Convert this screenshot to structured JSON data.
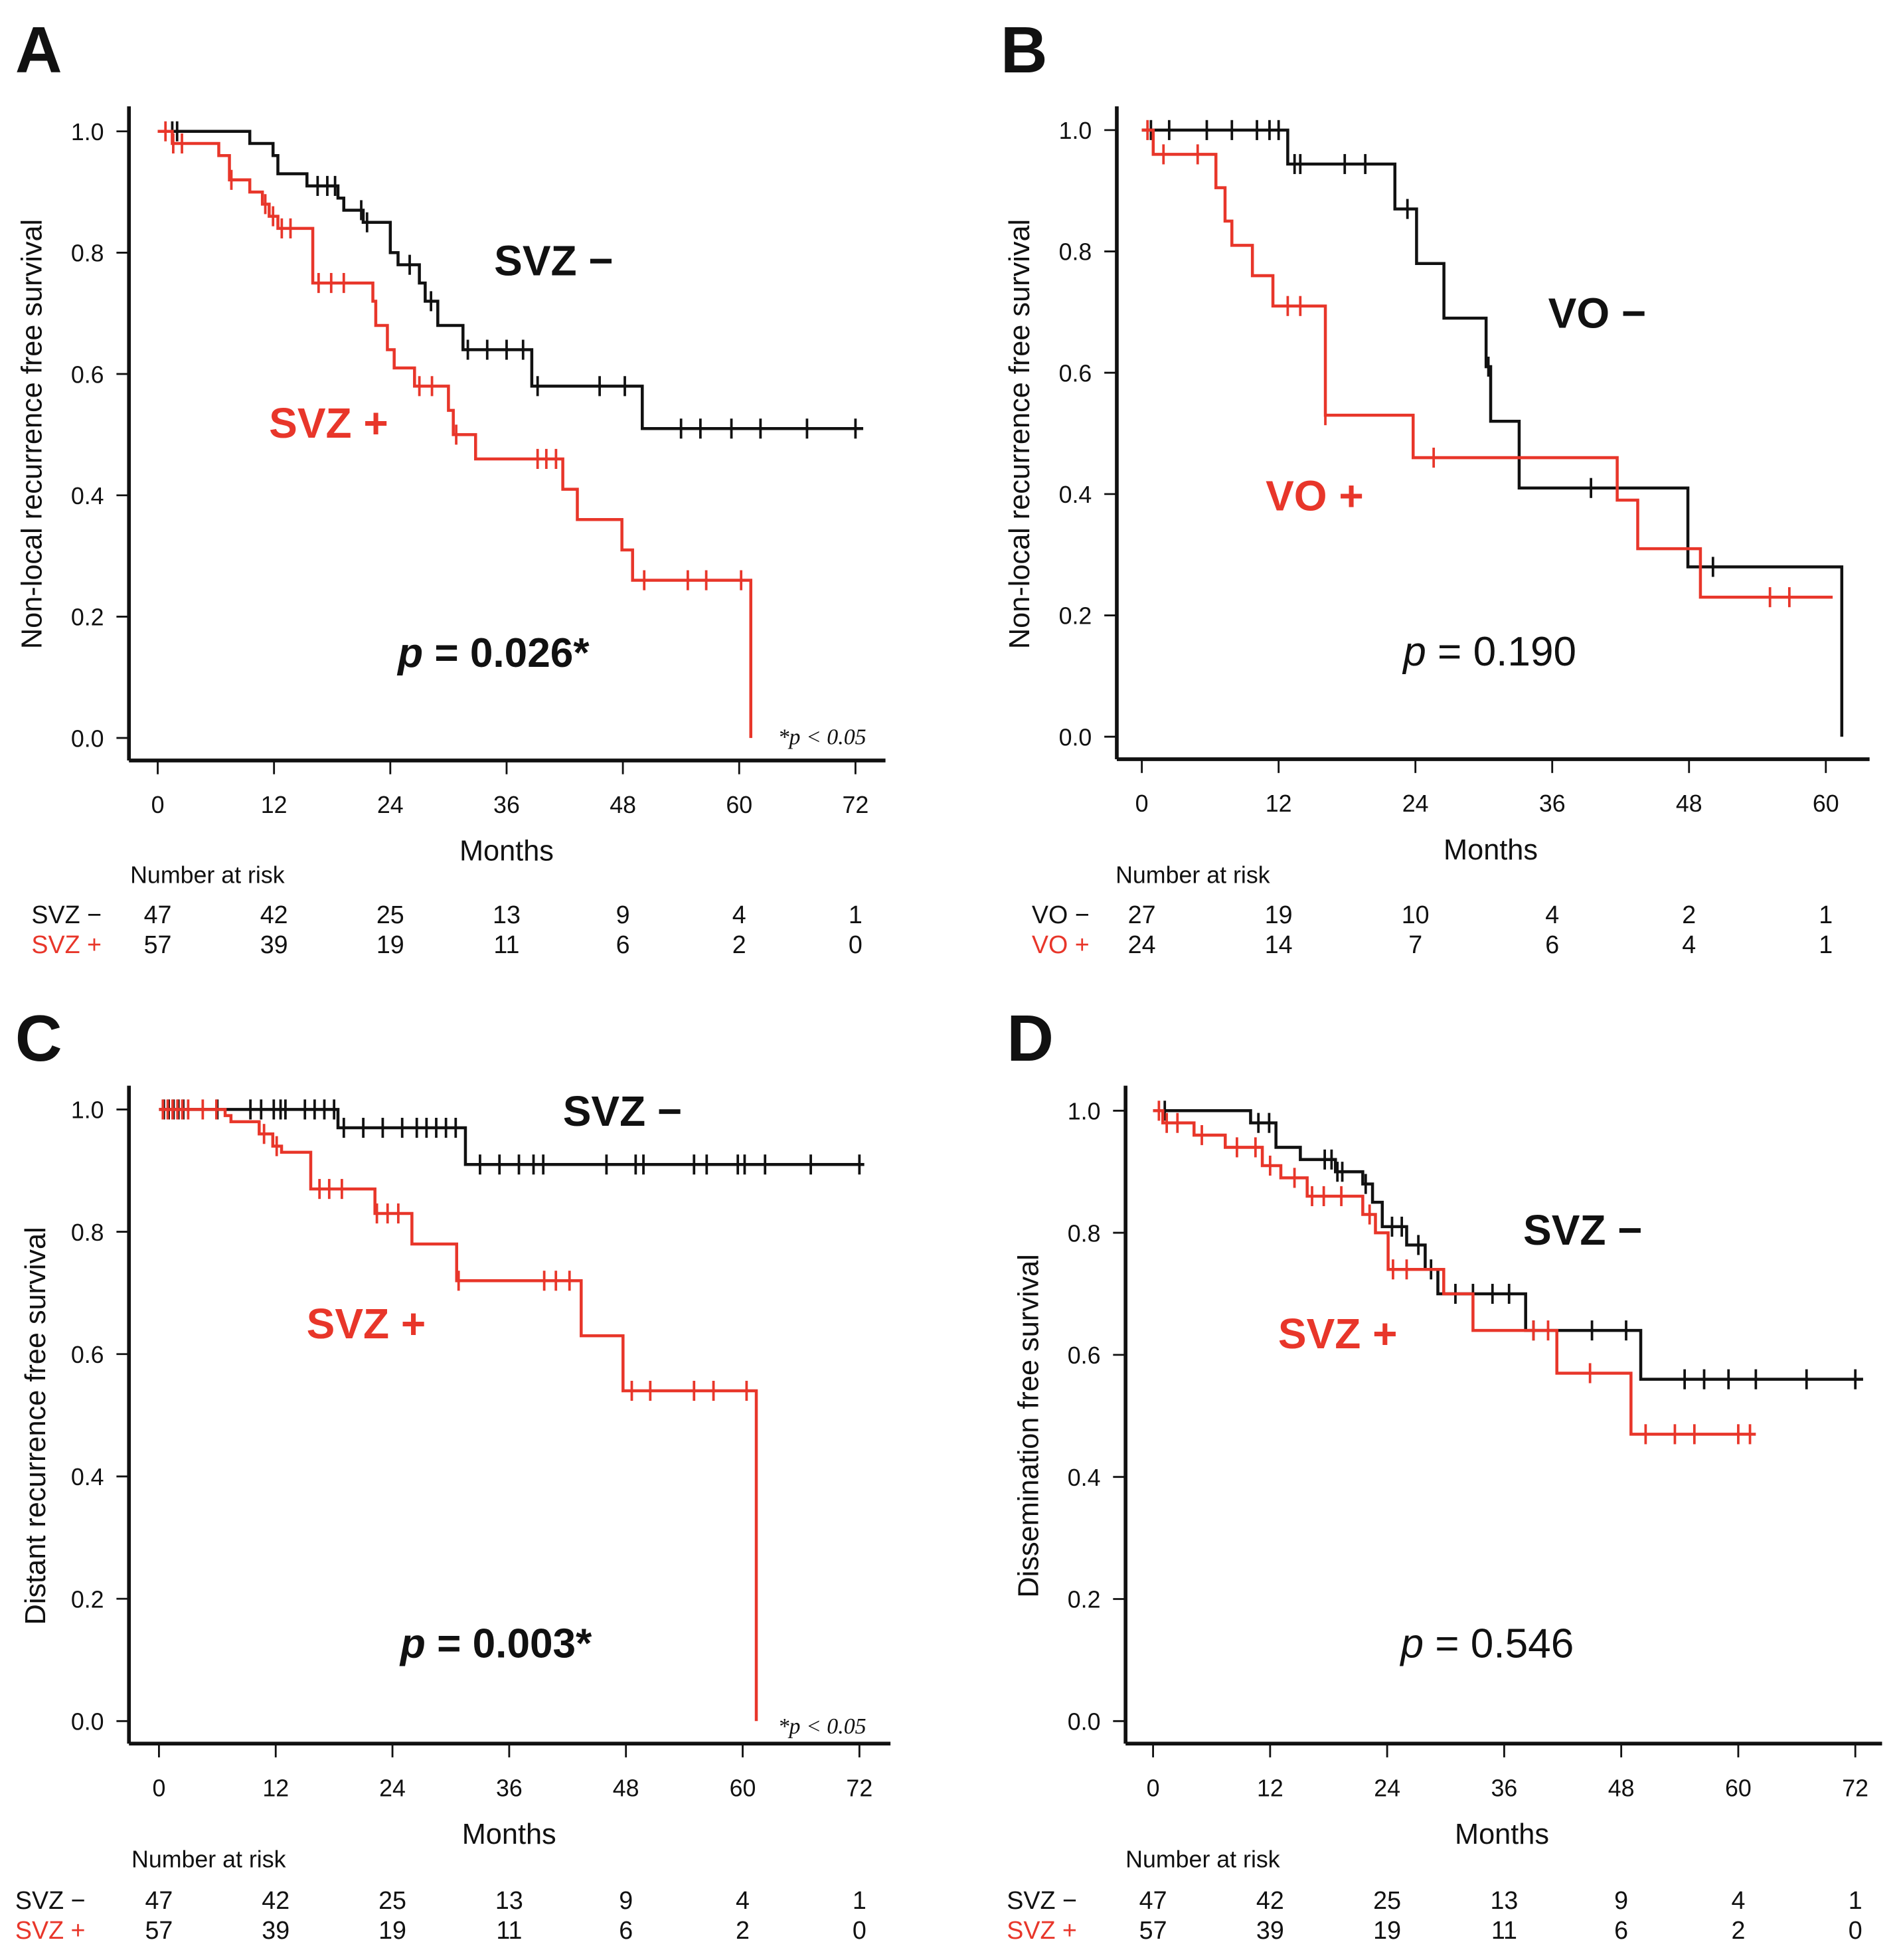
{
  "colors": {
    "black": "#111111",
    "red": "#e8362a"
  },
  "chart_data": [
    {
      "type": "line",
      "panel": "A",
      "ylabel": "Non-local recurrence free survival",
      "xlabel": "Months",
      "xticks": [
        0,
        12,
        24,
        36,
        48,
        60,
        72
      ],
      "yticks": [
        "0.0",
        "0.2",
        "0.4",
        "0.6",
        "0.8",
        "1.0"
      ],
      "xlim": [
        0,
        72
      ],
      "ylim": [
        0,
        1
      ],
      "series": [
        {
          "name": "SVZ −",
          "color": "black",
          "steps": [
            [
              0,
              1.0
            ],
            [
              9.5,
              0.98
            ],
            [
              11.9,
              0.96
            ],
            [
              12.4,
              0.93
            ],
            [
              15.4,
              0.91
            ],
            [
              18.6,
              0.89
            ],
            [
              19.2,
              0.87
            ],
            [
              21.2,
              0.85
            ],
            [
              24,
              0.8
            ],
            [
              24.8,
              0.78
            ],
            [
              27,
              0.75
            ],
            [
              27.6,
              0.72
            ],
            [
              28.9,
              0.68
            ],
            [
              31.5,
              0.64
            ],
            [
              38.6,
              0.58
            ],
            [
              50,
              0.51
            ]
          ],
          "censors": [
            1.5,
            2,
            16.5,
            17.5,
            18.3,
            21,
            21.6,
            26,
            28.2,
            32,
            34,
            36,
            37.7,
            39.2,
            45.6,
            48.2,
            54,
            56,
            59.2,
            62.2,
            67,
            72
          ],
          "end": 72.8
        },
        {
          "name": "SVZ +",
          "color": "red",
          "steps": [
            [
              0,
              1.0
            ],
            [
              1.5,
              0.98
            ],
            [
              6.3,
              0.96
            ],
            [
              7.4,
              0.92
            ],
            [
              9.5,
              0.9
            ],
            [
              10.8,
              0.88
            ],
            [
              11.5,
              0.86
            ],
            [
              12.4,
              0.84
            ],
            [
              16,
              0.75
            ],
            [
              22.2,
              0.72
            ],
            [
              22.5,
              0.68
            ],
            [
              23.7,
              0.64
            ],
            [
              24.4,
              0.61
            ],
            [
              26.5,
              0.58
            ],
            [
              30,
              0.54
            ],
            [
              30.5,
              0.5
            ],
            [
              32.8,
              0.46
            ],
            [
              41.8,
              0.41
            ],
            [
              43.3,
              0.36
            ],
            [
              47.9,
              0.31
            ],
            [
              49,
              0.26
            ],
            [
              61.2,
              0.0
            ]
          ],
          "censors": [
            0.8,
            1.6,
            2.5,
            7.6,
            11.1,
            11.9,
            12.8,
            13.7,
            16.6,
            17.9,
            19.2,
            27,
            28.3,
            30.8,
            39.2,
            40.1,
            41.1,
            50.2,
            54.7,
            56.6,
            60.2
          ],
          "end": 61.2
        }
      ],
      "annotations": {
        "group_minus": "SVZ −",
        "group_plus": "SVZ +",
        "p_label": "p",
        "p_value": " = 0.026*",
        "p_bold": true,
        "footnote": "*p < 0.05"
      },
      "risk_table": {
        "title": "Number at risk",
        "times": [
          0,
          12,
          24,
          36,
          48,
          60,
          72
        ],
        "rows": [
          {
            "label": "SVZ −",
            "color": "black",
            "values": [
              47,
              42,
              25,
              13,
              9,
              4,
              1
            ]
          },
          {
            "label": "SVZ +",
            "color": "red",
            "values": [
              57,
              39,
              19,
              11,
              6,
              2,
              0
            ]
          }
        ]
      }
    },
    {
      "type": "line",
      "panel": "B",
      "ylabel": "Non-local recurrence free survival",
      "xlabel": "Months",
      "xticks": [
        0,
        12,
        24,
        36,
        48,
        60
      ],
      "yticks": [
        "0.0",
        "0.2",
        "0.4",
        "0.6",
        "0.8",
        "1.0"
      ],
      "xlim": [
        0,
        60
      ],
      "ylim": [
        0,
        1
      ],
      "series": [
        {
          "name": "VO −",
          "color": "black",
          "steps": [
            [
              0,
              1.0
            ],
            [
              12.8,
              0.944
            ],
            [
              22.2,
              0.87
            ],
            [
              24.1,
              0.78
            ],
            [
              26.5,
              0.69
            ],
            [
              30.2,
              0.61
            ],
            [
              30.6,
              0.52
            ],
            [
              33.1,
              0.41
            ],
            [
              47.9,
              0.28
            ],
            [
              61.4,
              0.0
            ]
          ],
          "censors": [
            0.8,
            2.4,
            5.7,
            7.9,
            10.1,
            11.2,
            12,
            13.4,
            13.9,
            17.8,
            19.6,
            23.3,
            30.4,
            39.4,
            50.1
          ],
          "end": 61.4
        },
        {
          "name": "VO +",
          "color": "red",
          "steps": [
            [
              0,
              1.0
            ],
            [
              1,
              0.96
            ],
            [
              6.5,
              0.905
            ],
            [
              7.3,
              0.85
            ],
            [
              7.9,
              0.81
            ],
            [
              9.7,
              0.76
            ],
            [
              11.5,
              0.71
            ],
            [
              16.1,
              0.53
            ],
            [
              23.8,
              0.46
            ],
            [
              41.7,
              0.39
            ],
            [
              43.5,
              0.31
            ],
            [
              49,
              0.23
            ]
          ],
          "censors": [
            0.5,
            1.9,
            4.9,
            12.8,
            13.9,
            16.1,
            25.6,
            55.1,
            56.8
          ],
          "end": 60.6
        }
      ],
      "annotations": {
        "group_minus": "VO −",
        "group_plus": "VO +",
        "p_label": "p",
        "p_value": " = 0.190",
        "p_bold": false,
        "footnote": ""
      },
      "risk_table": {
        "title": "Number at risk",
        "times": [
          0,
          12,
          24,
          36,
          48,
          60
        ],
        "rows": [
          {
            "label": "VO −",
            "color": "black",
            "values": [
              27,
              19,
              10,
              4,
              2,
              1
            ]
          },
          {
            "label": "VO +",
            "color": "red",
            "values": [
              24,
              14,
              7,
              6,
              4,
              1
            ]
          }
        ]
      }
    },
    {
      "type": "line",
      "panel": "C",
      "ylabel": "Distant recurrence free survival",
      "xlabel": "Months",
      "xticks": [
        0,
        12,
        24,
        36,
        48,
        60,
        72
      ],
      "yticks": [
        "0.0",
        "0.2",
        "0.4",
        "0.6",
        "0.8",
        "1.0"
      ],
      "xlim": [
        0,
        72
      ],
      "ylim": [
        0,
        1
      ],
      "series": [
        {
          "name": "SVZ −",
          "color": "black",
          "steps": [
            [
              0,
              1.0
            ],
            [
              18.4,
              0.97
            ],
            [
              31.5,
              0.91
            ]
          ],
          "censors": [
            0.5,
            1,
            1.5,
            2,
            2.5,
            6,
            9.4,
            10.5,
            11.8,
            12.5,
            13,
            15,
            16,
            17,
            18,
            19,
            21,
            23,
            25,
            26.5,
            27.5,
            28.5,
            29.5,
            30.5,
            33,
            35,
            37,
            38.5,
            39.5,
            46,
            49,
            49.8,
            55,
            56.3,
            59.5,
            60.2,
            62.3,
            67,
            72
          ],
          "end": 72.5
        },
        {
          "name": "SVZ +",
          "color": "red",
          "steps": [
            [
              0,
              1.0
            ],
            [
              6.8,
              0.99
            ],
            [
              7.4,
              0.98
            ],
            [
              10.3,
              0.96
            ],
            [
              11.7,
              0.94
            ],
            [
              12.6,
              0.93
            ],
            [
              15.6,
              0.87
            ],
            [
              22.2,
              0.83
            ],
            [
              26,
              0.78
            ],
            [
              30.6,
              0.72
            ],
            [
              43.4,
              0.63
            ],
            [
              47.7,
              0.54
            ],
            [
              61.4,
              0.0
            ]
          ],
          "censors": [
            0.4,
            0.9,
            1.4,
            1.9,
            2.4,
            3,
            4.5,
            5.9,
            10.8,
            12.1,
            16.5,
            17.5,
            18.8,
            22.4,
            23.5,
            24.6,
            30.8,
            39.6,
            40.8,
            42.2,
            48.6,
            50.5,
            55,
            57,
            60.4
          ],
          "end": 61.4
        }
      ],
      "annotations": {
        "group_minus": "SVZ −",
        "group_plus": "SVZ +",
        "p_label": "p",
        "p_value": " = 0.003*",
        "p_bold": true,
        "footnote": "*p < 0.05"
      },
      "risk_table": {
        "title": "Number at risk",
        "times": [
          0,
          12,
          24,
          36,
          48,
          60,
          72
        ],
        "rows": [
          {
            "label": "SVZ −",
            "color": "black",
            "values": [
              47,
              42,
              25,
              13,
              9,
              4,
              1
            ]
          },
          {
            "label": "SVZ +",
            "color": "red",
            "values": [
              57,
              39,
              19,
              11,
              6,
              2,
              0
            ]
          }
        ]
      }
    },
    {
      "type": "line",
      "panel": "D",
      "ylabel": "Dissemination free survival",
      "xlabel": "Months",
      "xticks": [
        0,
        12,
        24,
        36,
        48,
        60,
        72
      ],
      "yticks": [
        "0.0",
        "0.2",
        "0.4",
        "0.6",
        "0.8",
        "1.0"
      ],
      "xlim": [
        0,
        72
      ],
      "ylim": [
        0,
        1
      ],
      "series": [
        {
          "name": "SVZ −",
          "color": "black",
          "steps": [
            [
              0,
              1.0
            ],
            [
              10,
              0.98
            ],
            [
              12.6,
              0.94
            ],
            [
              15.1,
              0.92
            ],
            [
              18.7,
              0.9
            ],
            [
              21.5,
              0.88
            ],
            [
              22.5,
              0.85
            ],
            [
              23.5,
              0.81
            ],
            [
              26,
              0.78
            ],
            [
              27.9,
              0.74
            ],
            [
              29.2,
              0.7
            ],
            [
              38.2,
              0.64
            ],
            [
              50,
              0.56
            ]
          ],
          "censors": [
            1.2,
            10.8,
            11.9,
            17.6,
            18.3,
            18.9,
            19.4,
            21.8,
            24.5,
            25.5,
            27.2,
            28.5,
            31,
            32.8,
            34.8,
            36.5,
            39,
            45,
            48.5,
            54.5,
            56.5,
            59,
            61.8,
            67,
            72
          ],
          "end": 72.8
        },
        {
          "name": "SVZ +",
          "color": "red",
          "steps": [
            [
              0,
              1.0
            ],
            [
              1,
              0.98
            ],
            [
              4.2,
              0.96
            ],
            [
              7.4,
              0.94
            ],
            [
              11.2,
              0.91
            ],
            [
              13.1,
              0.89
            ],
            [
              15.8,
              0.86
            ],
            [
              21.5,
              0.83
            ],
            [
              22.8,
              0.8
            ],
            [
              24.1,
              0.74
            ],
            [
              29.8,
              0.7
            ],
            [
              32.8,
              0.64
            ],
            [
              41.4,
              0.57
            ],
            [
              49,
              0.47
            ]
          ],
          "censors": [
            0.6,
            1.4,
            2.5,
            5,
            8.6,
            10.5,
            12,
            14.5,
            16.3,
            17.5,
            19.3,
            22.2,
            24.6,
            26,
            39,
            40.5,
            44.8,
            50.5,
            53.5,
            55.5,
            60,
            61.2
          ],
          "end": 61.8
        }
      ],
      "annotations": {
        "group_minus": "SVZ −",
        "group_plus": "SVZ +",
        "p_label": "p",
        "p_value": " = 0.546",
        "p_bold": false,
        "footnote": ""
      },
      "risk_table": {
        "title": "Number at risk",
        "times": [
          0,
          12,
          24,
          36,
          48,
          60,
          72
        ],
        "rows": [
          {
            "label": "SVZ −",
            "color": "black",
            "values": [
              47,
              42,
              25,
              13,
              9,
              4,
              1
            ]
          },
          {
            "label": "SVZ +",
            "color": "red",
            "values": [
              57,
              39,
              19,
              11,
              6,
              2,
              0
            ]
          }
        ]
      }
    }
  ]
}
